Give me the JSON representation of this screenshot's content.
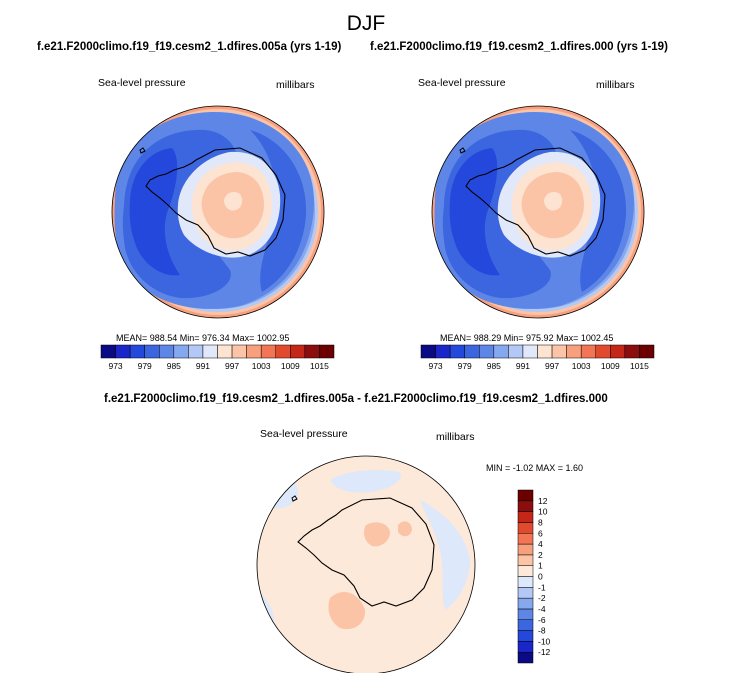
{
  "figure": {
    "title": "DJF"
  },
  "chart_data": [
    {
      "type": "heatmap",
      "projection": "south-polar-stereographic",
      "title": "f.e21.F2000climo.f19_f19.cesm2_1.dfires.005a (yrs 1-19)",
      "field_label": "Sea-level pressure",
      "units_label": "millibars",
      "stats": {
        "mean": "988.54",
        "min": "976.34",
        "max": "1002.95",
        "text": "MEAN= 988.54  Min= 976.34  Max= 1002.95"
      },
      "colorbar": {
        "orientation": "horizontal",
        "levels": [
          973,
          976,
          979,
          982,
          985,
          988,
          991,
          994,
          997,
          1000,
          1003,
          1006,
          1009,
          1012,
          1015
        ],
        "tick_labels": [
          "973",
          "979",
          "985",
          "991",
          "997",
          "1003",
          "1009",
          "1015"
        ]
      }
    },
    {
      "type": "heatmap",
      "projection": "south-polar-stereographic",
      "title": "f.e21.F2000climo.f19_f19.cesm2_1.dfires.000 (yrs 1-19)",
      "field_label": "Sea-level pressure",
      "units_label": "millibars",
      "stats": {
        "mean": "988.29",
        "min": "975.92",
        "max": "1002.45",
        "text": "MEAN= 988.29  Min= 975.92  Max= 1002.45"
      },
      "colorbar": {
        "orientation": "horizontal",
        "levels": [
          973,
          976,
          979,
          982,
          985,
          988,
          991,
          994,
          997,
          1000,
          1003,
          1006,
          1009,
          1012,
          1015
        ],
        "tick_labels": [
          "973",
          "979",
          "985",
          "991",
          "997",
          "1003",
          "1009",
          "1015"
        ]
      }
    },
    {
      "type": "heatmap",
      "projection": "south-polar-stereographic",
      "title": "f.e21.F2000climo.f19_f19.cesm2_1.dfires.005a - f.e21.F2000climo.f19_f19.cesm2_1.dfires.000",
      "field_label": "Sea-level pressure",
      "units_label": "millibars",
      "stats": {
        "min": "-1.02",
        "max": "1.60",
        "text": "MIN =  -1.02 MAX =   1.60"
      },
      "colorbar": {
        "orientation": "vertical",
        "levels": [
          -12,
          -10,
          -8,
          -6,
          -4,
          -2,
          -1,
          0,
          1,
          2,
          4,
          6,
          8,
          10,
          12
        ],
        "tick_labels": [
          "-12",
          "-10",
          "-8",
          "-6",
          "-4",
          "-2",
          "-1",
          "0",
          "1",
          "2",
          "4",
          "6",
          "8",
          "10",
          "12"
        ]
      }
    }
  ],
  "palette": {
    "slp": [
      "#0a0a85",
      "#1a26c8",
      "#2548dc",
      "#3b66e0",
      "#5d86e6",
      "#86a8ee",
      "#b3c8f4",
      "#e0e8fa",
      "#fde4d2",
      "#fbc4a6",
      "#f8a07e",
      "#f27655",
      "#e24a2e",
      "#c42618",
      "#8c0d0d",
      "#6a0000"
    ],
    "diff": [
      "#0a0a85",
      "#1a26c8",
      "#2548dc",
      "#3b66e0",
      "#5d86e6",
      "#86a8ee",
      "#b3c8f4",
      "#dde8fb",
      "#fde9d9",
      "#fbc4a6",
      "#f8a07e",
      "#f27655",
      "#e24a2e",
      "#c42618",
      "#8c0d0d",
      "#6a0000"
    ]
  }
}
